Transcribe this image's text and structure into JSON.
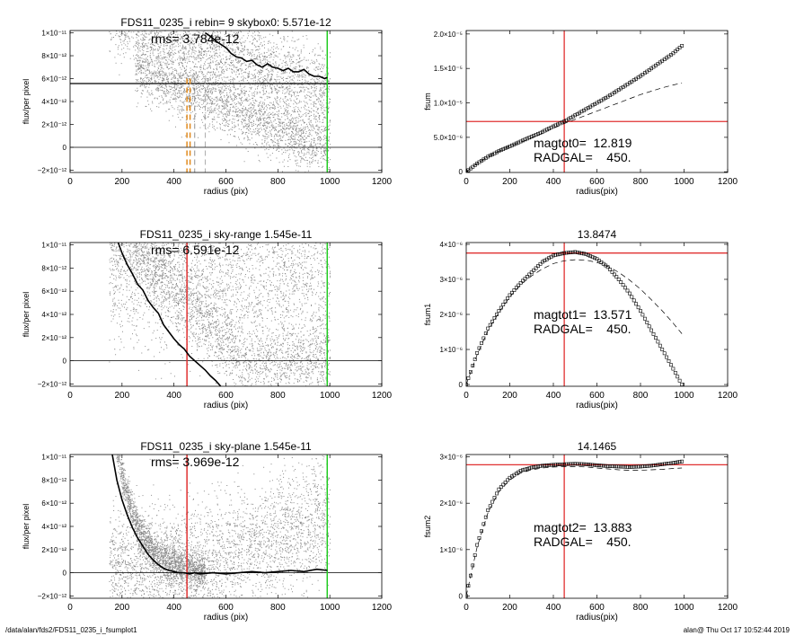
{
  "footer": {
    "left": "/data/alan/fds2/FDS11_0235_i_fsumplot1",
    "right": "alan@  Thu Oct 17 10:52:44 2019"
  },
  "colors": {
    "scatter_points": "#8c8c8c",
    "profile_line": "#000000",
    "galaxy_radius_line": "#e03030",
    "outer_radius_line": "#22cc22",
    "aperture_markers": "#e08a1e",
    "hline": "#000000"
  },
  "chart_data": [
    {
      "id": "left1",
      "type": "scatter",
      "title": "FDS11_0235_i rebin= 9    skybox0:  5.571e-12",
      "annotation": "rms= 3.784e-12",
      "xlabel": "radius (pix)",
      "ylabel": "flux/per pixel",
      "xlim": [
        0,
        1200
      ],
      "ylim": [
        -2.2e-12,
        1.02e-11
      ],
      "x_ticks": [
        0,
        200,
        400,
        600,
        800,
        1000,
        1200
      ],
      "x_tick_labels": [
        "0",
        "200",
        "400",
        "600",
        "800",
        "1000",
        "1200"
      ],
      "y_ticks": [
        -2e-12,
        0,
        2e-12,
        4e-12,
        6e-12,
        8e-12,
        1e-11
      ],
      "y_tick_labels": [
        "−2×10⁻¹²",
        "0",
        "2×10⁻¹²",
        "4×10⁻¹²",
        "6×10⁻¹²",
        "8×10⁻¹²",
        "1×10⁻¹¹"
      ],
      "hlines": [
        0,
        5.571e-12
      ],
      "vlines": [
        {
          "x": 990,
          "color": "#22cc22"
        }
      ],
      "dashed_vlines": [
        {
          "x": 450,
          "color": "#e08a1e"
        },
        {
          "x": 462,
          "color": "#e08a1e"
        },
        {
          "x": 480,
          "color": "#777777"
        },
        {
          "x": 520,
          "color": "#999999"
        }
      ],
      "profile": {
        "x": [
          520,
          540,
          560,
          580,
          600,
          620,
          640,
          660,
          680,
          700,
          720,
          740,
          760,
          780,
          800,
          820,
          840,
          860,
          880,
          900,
          920,
          940,
          960,
          980,
          990
        ],
        "y": [
          1e-11,
          9.7e-12,
          9.3e-12,
          9e-12,
          8.7e-12,
          8.2e-12,
          7.9e-12,
          7.8e-12,
          7.5e-12,
          7.6e-12,
          7.2e-12,
          7e-12,
          7.3e-12,
          7e-12,
          6.9e-12,
          6.7e-12,
          6.9e-12,
          6.6e-12,
          6.6e-12,
          6.8e-12,
          6.4e-12,
          6.2e-12,
          6.2e-12,
          6e-12,
          6.1e-12
        ]
      },
      "scatter_model": "left1"
    },
    {
      "id": "right1",
      "type": "line",
      "title": "",
      "annotation_lines": [
        "magtot0=  12.819",
        "RADGAL=    450."
      ],
      "xlabel": "radius(pix)",
      "ylabel": "fsum",
      "xlim": [
        0,
        1200
      ],
      "ylim": [
        -1e-07,
        2.05e-05
      ],
      "x_ticks": [
        0,
        200,
        400,
        600,
        800,
        1000,
        1200
      ],
      "x_tick_labels": [
        "0",
        "200",
        "400",
        "600",
        "800",
        "1000",
        "1200"
      ],
      "y_ticks": [
        0,
        5e-06,
        1e-05,
        1.5e-05,
        2e-05
      ],
      "y_tick_labels": [
        "0",
        "5.0×10⁻⁶",
        "1.0×10⁻⁵",
        "1.5×10⁻⁵",
        "2.0×10⁻⁵"
      ],
      "hline_red": 7.3e-06,
      "vline_red": 450,
      "series": [
        {
          "style": "squares",
          "x": [
            0,
            50,
            100,
            150,
            200,
            250,
            300,
            350,
            400,
            450,
            500,
            550,
            600,
            650,
            700,
            750,
            800,
            850,
            900,
            950,
            990
          ],
          "y": [
            0,
            1.2e-06,
            2.2e-06,
            3e-06,
            3.7e-06,
            4.4e-06,
            5.1e-06,
            5.8e-06,
            6.6e-06,
            7.3e-06,
            8.2e-06,
            9.1e-06,
            1e-05,
            1.09e-05,
            1.19e-05,
            1.29e-05,
            1.39e-05,
            1.5e-05,
            1.61e-05,
            1.72e-05,
            1.83e-05
          ]
        },
        {
          "style": "dashed",
          "x": [
            0,
            50,
            100,
            150,
            200,
            250,
            300,
            350,
            400,
            450,
            500,
            550,
            600,
            650,
            700,
            750,
            800,
            850,
            900,
            950,
            990
          ],
          "y": [
            0,
            1.2e-06,
            2.2e-06,
            3e-06,
            3.7e-06,
            4.3e-06,
            4.9e-06,
            5.6e-06,
            6.3e-06,
            7e-06,
            7.6e-06,
            8.2e-06,
            8.8e-06,
            9.4e-06,
            1e-05,
            1.06e-05,
            1.12e-05,
            1.17e-05,
            1.22e-05,
            1.26e-05,
            1.29e-05
          ]
        }
      ]
    },
    {
      "id": "left2",
      "type": "scatter",
      "title": "FDS11_0235_i sky-range  1.545e-11",
      "annotation": "rms= 6.591e-12",
      "xlabel": "radius (pix)",
      "ylabel": "flux/per pixel",
      "xlim": [
        0,
        1200
      ],
      "ylim": [
        -2.2e-12,
        1.02e-11
      ],
      "x_ticks": [
        0,
        200,
        400,
        600,
        800,
        1000,
        1200
      ],
      "x_tick_labels": [
        "0",
        "200",
        "400",
        "600",
        "800",
        "1000",
        "1200"
      ],
      "y_ticks": [
        -2e-12,
        0,
        2e-12,
        4e-12,
        6e-12,
        8e-12,
        1e-11
      ],
      "y_tick_labels": [
        "−2×10⁻¹²",
        "0",
        "2×10⁻¹²",
        "4×10⁻¹²",
        "6×10⁻¹²",
        "8×10⁻¹²",
        "1×10⁻¹¹"
      ],
      "hlines": [
        0
      ],
      "vlines": [
        {
          "x": 450,
          "color": "#e03030"
        },
        {
          "x": 990,
          "color": "#22cc22"
        }
      ],
      "profile": {
        "x": [
          180,
          200,
          220,
          240,
          260,
          280,
          300,
          320,
          340,
          360,
          380,
          400,
          420,
          440,
          460,
          480,
          500,
          520,
          540,
          560,
          580
        ],
        "y": [
          1.05e-11,
          9.3e-12,
          8.3e-12,
          7.5e-12,
          6.6e-12,
          6.1e-12,
          5.2e-12,
          4.6e-12,
          4.1e-12,
          3.1e-12,
          2.5e-12,
          1.9e-12,
          1.4e-12,
          1e-12,
          4e-13,
          0,
          -4e-13,
          -8e-13,
          -1.3e-12,
          -1.7e-12,
          -2.2e-12
        ]
      },
      "scatter_model": "left2"
    },
    {
      "id": "right2",
      "type": "line",
      "title": "13.8474",
      "annotation_lines": [
        "magtot1=  13.571",
        "RADGAL=    450."
      ],
      "xlabel": "radius(pix)",
      "ylabel": "fsum1",
      "xlim": [
        0,
        1200
      ],
      "ylim": [
        -5e-08,
        4.05e-06
      ],
      "x_ticks": [
        0,
        200,
        400,
        600,
        800,
        1000,
        1200
      ],
      "x_tick_labels": [
        "0",
        "200",
        "400",
        "600",
        "800",
        "1000",
        "1200"
      ],
      "y_ticks": [
        0,
        1e-06,
        2e-06,
        3e-06,
        4e-06
      ],
      "y_tick_labels": [
        "0",
        "1×10⁻⁶",
        "2×10⁻⁶",
        "3×10⁻⁶",
        "4×10⁻⁶"
      ],
      "hline_red": 3.75e-06,
      "vline_red": 450,
      "series": [
        {
          "style": "squares",
          "x": [
            0,
            50,
            100,
            150,
            200,
            250,
            300,
            350,
            400,
            450,
            500,
            550,
            600,
            650,
            700,
            750,
            800,
            850,
            900,
            950,
            990
          ],
          "y": [
            0,
            9e-07,
            1.6e-06,
            2.1e-06,
            2.55e-06,
            2.9e-06,
            3.2e-06,
            3.5e-06,
            3.68e-06,
            3.75e-06,
            3.78e-06,
            3.72e-06,
            3.58e-06,
            3.35e-06,
            3e-06,
            2.6e-06,
            2.1e-06,
            1.55e-06,
            1e-06,
            4.5e-07,
            0
          ]
        },
        {
          "style": "dashed",
          "x": [
            0,
            50,
            100,
            150,
            200,
            250,
            300,
            350,
            400,
            450,
            500,
            550,
            600,
            650,
            700,
            750,
            800,
            850,
            900,
            950,
            990
          ],
          "y": [
            0,
            8.5e-07,
            1.55e-06,
            2.05e-06,
            2.5e-06,
            2.85e-06,
            3.1e-06,
            3.3e-06,
            3.45e-06,
            3.53e-06,
            3.56e-06,
            3.55e-06,
            3.48e-06,
            3.37e-06,
            3.2e-06,
            2.98e-06,
            2.72e-06,
            2.42e-06,
            2.1e-06,
            1.75e-06,
            1.45e-06
          ]
        }
      ]
    },
    {
      "id": "left3",
      "type": "scatter",
      "title": "FDS11_0235_i sky-plane  1.545e-11",
      "annotation": "rms= 3.969e-12",
      "xlabel": "radius (pix)",
      "ylabel": "flux/per pixel",
      "xlim": [
        0,
        1200
      ],
      "ylim": [
        -2.2e-12,
        1.02e-11
      ],
      "x_ticks": [
        0,
        200,
        400,
        600,
        800,
        1000,
        1200
      ],
      "x_tick_labels": [
        "0",
        "200",
        "400",
        "600",
        "800",
        "1000",
        "1200"
      ],
      "y_ticks": [
        -2e-12,
        0,
        2e-12,
        4e-12,
        6e-12,
        8e-12,
        1e-11
      ],
      "y_tick_labels": [
        "−2×10⁻¹²",
        "0",
        "2×10⁻¹²",
        "4×10⁻¹²",
        "6×10⁻¹²",
        "8×10⁻¹²",
        "1×10⁻¹¹"
      ],
      "hlines": [
        0
      ],
      "vlines": [
        {
          "x": 450,
          "color": "#e03030"
        },
        {
          "x": 990,
          "color": "#22cc22"
        }
      ],
      "profile": {
        "x": [
          160,
          180,
          200,
          220,
          240,
          260,
          280,
          300,
          320,
          340,
          360,
          380,
          400,
          420,
          440,
          460,
          480,
          500,
          550,
          600,
          650,
          700,
          750,
          800,
          850,
          900,
          950,
          990
        ],
        "y": [
          1.05e-11,
          8e-12,
          6.3e-12,
          5e-12,
          3.9e-12,
          3e-12,
          2.3e-12,
          1.6e-12,
          1.1e-12,
          7e-13,
          4e-13,
          2e-13,
          1e-13,
          0,
          0,
          -1e-13,
          0,
          -1e-13,
          0,
          -1e-13,
          0,
          1e-13,
          0,
          1e-13,
          2e-13,
          1e-13,
          3e-13,
          2e-13
        ]
      },
      "scatter_model": "left3"
    },
    {
      "id": "right3",
      "type": "line",
      "title": "14.1465",
      "annotation_lines": [
        "magtot2=  13.883",
        "RADGAL=    450."
      ],
      "xlabel": "radius(pix)",
      "ylabel": "fsum2",
      "xlim": [
        0,
        1200
      ],
      "ylim": [
        -5e-08,
        3.05e-06
      ],
      "x_ticks": [
        0,
        200,
        400,
        600,
        800,
        1000,
        1200
      ],
      "x_tick_labels": [
        "0",
        "200",
        "400",
        "600",
        "800",
        "1000",
        "1200"
      ],
      "y_ticks": [
        0,
        1e-06,
        2e-06,
        3e-06
      ],
      "y_tick_labels": [
        "0",
        "1×10⁻⁶",
        "2×10⁻⁶",
        "3×10⁻⁶"
      ],
      "hline_red": 2.83e-06,
      "vline_red": 450,
      "series": [
        {
          "style": "squares",
          "x": [
            0,
            50,
            100,
            150,
            200,
            250,
            300,
            350,
            400,
            450,
            500,
            550,
            600,
            650,
            700,
            750,
            800,
            850,
            900,
            950,
            990
          ],
          "y": [
            0,
            1.1e-06,
            1.85e-06,
            2.3e-06,
            2.55e-06,
            2.7e-06,
            2.77e-06,
            2.81e-06,
            2.83e-06,
            2.84e-06,
            2.85e-06,
            2.84e-06,
            2.82e-06,
            2.8e-06,
            2.79e-06,
            2.78e-06,
            2.79e-06,
            2.81e-06,
            2.84e-06,
            2.87e-06,
            2.9e-06
          ]
        },
        {
          "style": "dashed",
          "x": [
            0,
            50,
            100,
            150,
            200,
            250,
            300,
            350,
            400,
            450,
            500,
            550,
            600,
            650,
            700,
            750,
            800,
            850,
            900,
            950,
            990
          ],
          "y": [
            0,
            1.05e-06,
            1.8e-06,
            2.25e-06,
            2.5e-06,
            2.65e-06,
            2.72e-06,
            2.76e-06,
            2.78e-06,
            2.79e-06,
            2.79e-06,
            2.78e-06,
            2.76e-06,
            2.74e-06,
            2.72e-06,
            2.71e-06,
            2.71e-06,
            2.72e-06,
            2.73e-06,
            2.75e-06,
            2.76e-06
          ]
        }
      ]
    }
  ]
}
